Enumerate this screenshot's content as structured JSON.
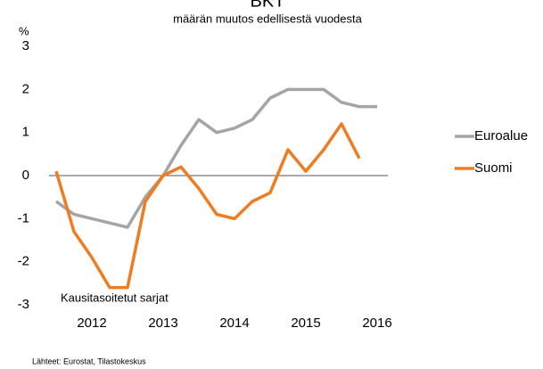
{
  "chart_data": {
    "type": "line",
    "title": "BKT",
    "subtitle": "määrän muutos edellisestä vuodesta",
    "y_label": "%",
    "annotation": "Kausitasoitetut sarjat",
    "source": "Lähteet: Eurostat, Tilastokeskus",
    "categories": [
      null,
      null,
      "2012",
      null,
      null,
      null,
      "2013",
      null,
      null,
      null,
      "2014",
      null,
      null,
      null,
      "2015",
      null,
      null,
      null,
      "2016"
    ],
    "series": [
      {
        "name": "Euroalue",
        "color": "#a5a5a5",
        "values": [
          -0.6,
          -0.9,
          -1.0,
          -1.1,
          -1.2,
          -0.5,
          0.0,
          0.7,
          1.3,
          1.0,
          1.1,
          1.3,
          1.8,
          2.0,
          2.0,
          2.0,
          1.7,
          1.6,
          1.6
        ]
      },
      {
        "name": "Suomi",
        "color": "#f07c22",
        "values": [
          0.1,
          -1.3,
          -1.9,
          -2.6,
          -2.6,
          -0.6,
          0.0,
          0.2,
          -0.3,
          -0.9,
          -1.0,
          -0.6,
          -0.4,
          0.6,
          0.1,
          0.6,
          1.2,
          0.4,
          null
        ]
      }
    ],
    "ylim": [
      -3,
      3
    ],
    "yticks": [
      -3,
      -2,
      -1,
      0,
      1,
      2,
      3
    ],
    "grid": false,
    "legend": "right"
  }
}
